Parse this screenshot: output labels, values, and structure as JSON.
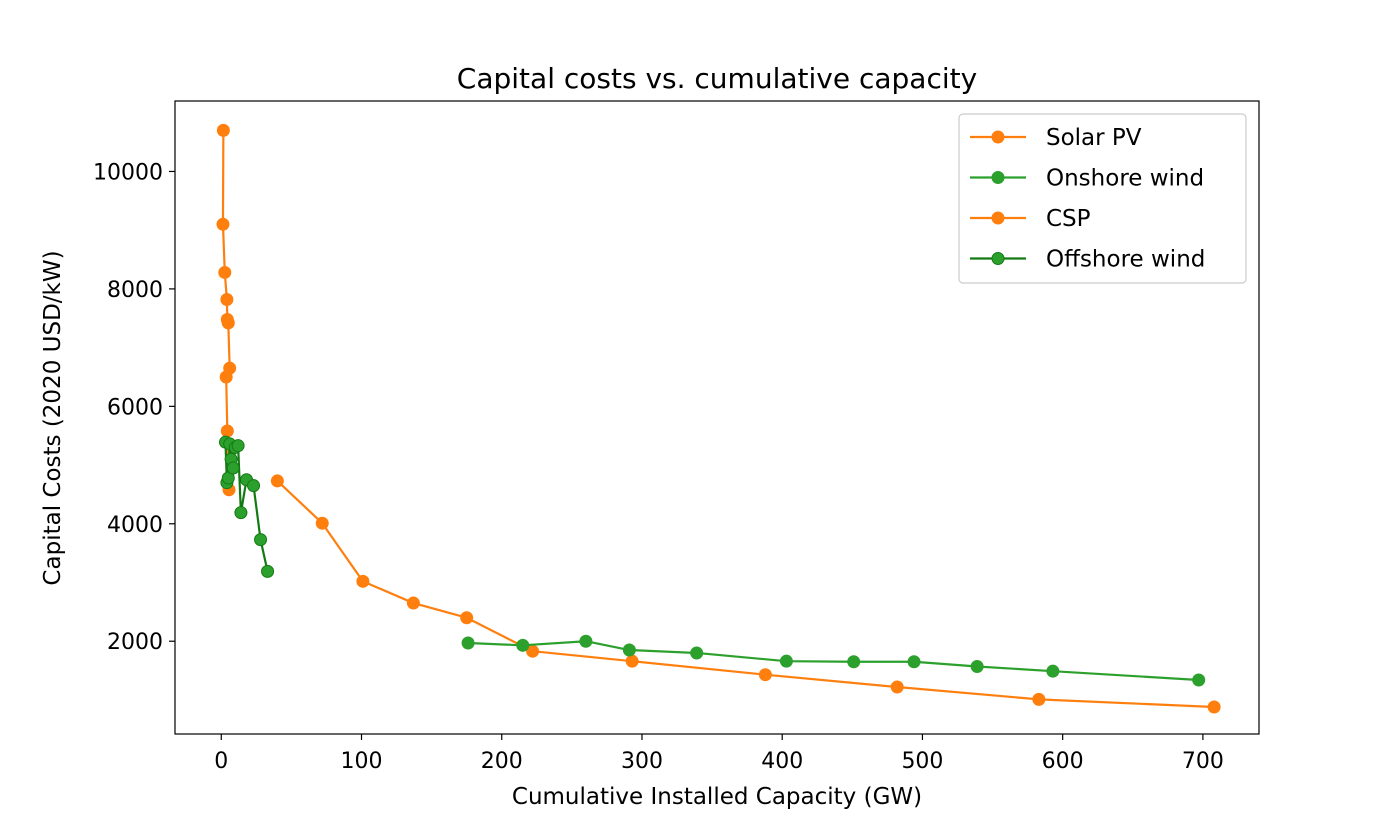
{
  "chart_data": {
    "type": "line",
    "title": "Capital costs vs. cumulative capacity",
    "xlabel": "Cumulative Installed Capacity (GW)",
    "ylabel": "Capital Costs (2020 USD/kW)",
    "xlim": [
      -33,
      740
    ],
    "ylim": [
      420,
      11200
    ],
    "xticks": [
      0,
      100,
      200,
      300,
      400,
      500,
      600,
      700
    ],
    "yticks": [
      2000,
      4000,
      6000,
      8000,
      10000
    ],
    "grid": false,
    "legend_position": "top-right",
    "series": [
      {
        "name": "Solar PV",
        "color": "#ff7f0e",
        "line_color": "#ff7f0e",
        "x": [
          40,
          72,
          101,
          137,
          175,
          222,
          293,
          388,
          482,
          583,
          708
        ],
        "y": [
          4730,
          4010,
          3020,
          2650,
          2400,
          1830,
          1660,
          1430,
          1220,
          1010,
          880
        ]
      },
      {
        "name": "Onshore wind",
        "color": "#2ca02c",
        "line_color": "#2ca02c",
        "x": [
          176,
          215,
          260,
          291,
          339,
          403,
          451,
          494,
          539,
          593,
          697
        ],
        "y": [
          1970,
          1930,
          2000,
          1850,
          1800,
          1660,
          1650,
          1650,
          1570,
          1490,
          1340
        ]
      },
      {
        "name": "CSP",
        "color": "#ff7f0e",
        "line_color": "#ff7f0e",
        "x": [
          1.5,
          1.2,
          2.5,
          4.0,
          4.3,
          5.0,
          6.0,
          3.5,
          4.3,
          5.5
        ],
        "y": [
          10700,
          9100,
          8280,
          7820,
          7480,
          7420,
          6650,
          6500,
          5580,
          4580
        ]
      },
      {
        "name": "Offshore wind",
        "color": "#2ca02c",
        "line_color": "#137a13",
        "x": [
          3.0,
          4.0,
          5.0,
          6.0,
          7.0,
          8.5,
          10.0,
          12.0,
          14.0,
          18.0,
          23.0,
          28.0,
          33.0
        ],
        "y": [
          5390,
          4700,
          4780,
          5360,
          5100,
          4950,
          5300,
          5330,
          4190,
          4750,
          4650,
          3730,
          3190
        ]
      }
    ]
  }
}
